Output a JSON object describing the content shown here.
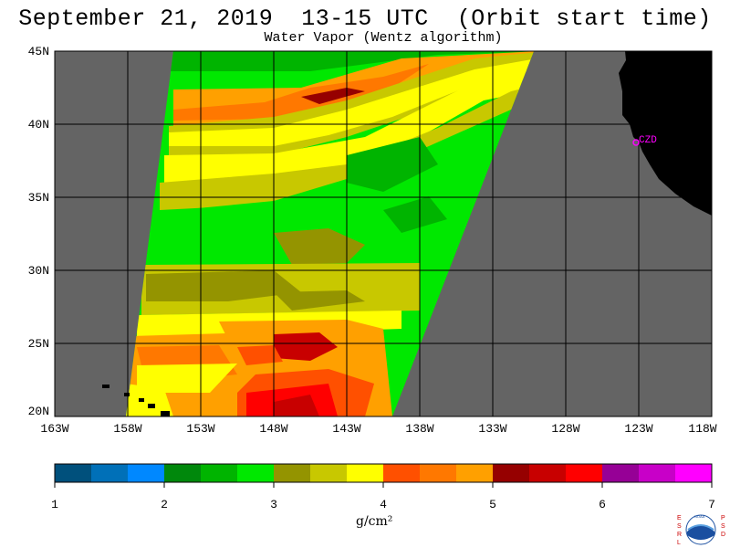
{
  "title": "September 21, 2019  13-15 UTC  (Orbit start time)",
  "subtitle": "Water Vapor (Wentz algorithm)",
  "lat_labels": [
    "45N",
    "40N",
    "35N",
    "30N",
    "25N",
    "20N"
  ],
  "lon_labels": [
    "163W",
    "158W",
    "153W",
    "148W",
    "143W",
    "138W",
    "133W",
    "128W",
    "123W",
    "118W"
  ],
  "station_label": "CZD",
  "colorbar": {
    "ticks": [
      "1",
      "2",
      "3",
      "4",
      "5",
      "6",
      "7"
    ],
    "units": "g/cm²",
    "colors": [
      "#00507c",
      "#0070b8",
      "#0088ff",
      "#00880c",
      "#00b400",
      "#00e800",
      "#949400",
      "#c8c800",
      "#ffff00",
      "#ff5000",
      "#ff7800",
      "#ffa000",
      "#960000",
      "#c80000",
      "#ff0000",
      "#960096",
      "#c800c8",
      "#ff00ff"
    ]
  },
  "colors": {
    "land": "#000000",
    "no_data": "#646464",
    "grid": "#000000",
    "station": "#ff00ff"
  },
  "logo_letters": {
    "left": [
      "E",
      "S",
      "R",
      "L"
    ],
    "right": [
      "P",
      "S",
      "D"
    ]
  },
  "logo_text": "NOAA"
}
